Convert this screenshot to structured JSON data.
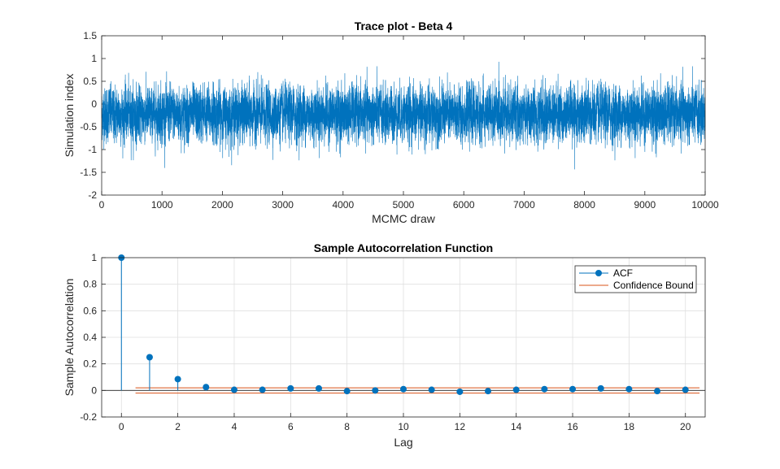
{
  "chart_data": [
    {
      "type": "line",
      "title": "Trace plot - Beta 4",
      "xlabel": "MCMC draw",
      "ylabel": "Simulation index",
      "xlim": [
        0,
        10000
      ],
      "ylim": [
        -2,
        1.5
      ],
      "xticks": [
        0,
        1000,
        2000,
        3000,
        4000,
        5000,
        6000,
        7000,
        8000,
        9000,
        10000
      ],
      "yticks": [
        -2,
        -1.5,
        -1,
        -0.5,
        0,
        0.5,
        1,
        1.5
      ],
      "grid": false,
      "series_color": "#0072bd",
      "n_draws": 10000,
      "mean": -0.22,
      "std": 0.3,
      "min": -1.6,
      "max": 1.1
    },
    {
      "type": "stem",
      "title": "Sample Autocorrelation Function",
      "xlabel": "Lag",
      "ylabel": "Sample Autocorrelation",
      "xlim": [
        -0.7,
        20.7
      ],
      "ylim": [
        -0.2,
        1
      ],
      "xticks": [
        0,
        2,
        4,
        6,
        8,
        10,
        12,
        14,
        16,
        18,
        20
      ],
      "yticks": [
        -0.2,
        0,
        0.2,
        0.4,
        0.6,
        0.8,
        1
      ],
      "grid": true,
      "legend_position": "top-right",
      "series": [
        {
          "name": "ACF",
          "color": "#0072bd",
          "x": [
            0,
            1,
            2,
            3,
            4,
            5,
            6,
            7,
            8,
            9,
            10,
            11,
            12,
            13,
            14,
            15,
            16,
            17,
            18,
            19,
            20
          ],
          "values": [
            1.0,
            0.25,
            0.085,
            0.025,
            0.005,
            0.005,
            0.015,
            0.015,
            -0.005,
            0.0,
            0.01,
            0.005,
            -0.01,
            -0.005,
            0.005,
            0.01,
            0.01,
            0.015,
            0.01,
            -0.005,
            0.005
          ]
        },
        {
          "name": "Confidence Bound",
          "color": "#d95319",
          "x_range": [
            0.5,
            20.5
          ],
          "upper": 0.02,
          "lower": -0.02
        }
      ]
    }
  ]
}
